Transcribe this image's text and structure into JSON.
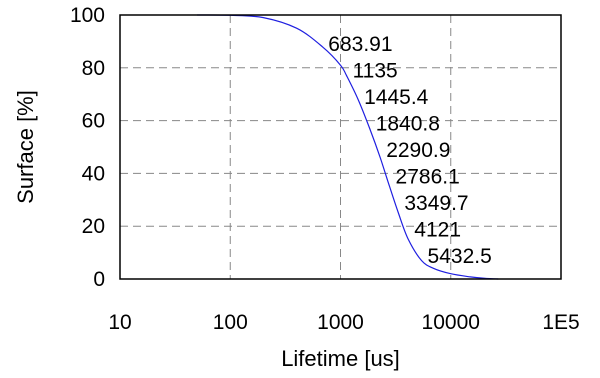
{
  "chart_data": {
    "type": "line",
    "title": "",
    "xlabel": "Lifetime [us]",
    "ylabel": "Surface [%]",
    "xscale": "log",
    "xlim": [
      10,
      100000
    ],
    "ylim": [
      0,
      100
    ],
    "x_ticks": [
      "10",
      "100",
      "1000",
      "10000",
      "1E5"
    ],
    "x_tick_values": [
      10,
      100,
      1000,
      10000,
      100000
    ],
    "y_ticks": [
      "0",
      "20",
      "40",
      "60",
      "80",
      "100"
    ],
    "y_tick_values": [
      0,
      20,
      40,
      60,
      80,
      100
    ],
    "grid": true,
    "grid_style": "dashed",
    "series": [
      {
        "color": "#1f1fe0",
        "x": [
          50,
          100,
          200,
          400,
          683.91,
          1000,
          1135,
          1445.4,
          1840.8,
          2290.9,
          2786.1,
          3349.7,
          4121,
          5432.5,
          7000,
          10000,
          15000,
          20000,
          27000
        ],
        "y": [
          100,
          99.9,
          99,
          95,
          88,
          81,
          77,
          68,
          57,
          46,
          35,
          25,
          15,
          7,
          4,
          2,
          0.8,
          0.3,
          0
        ]
      }
    ],
    "annotations": [
      "683.91",
      "1135",
      "1445.4",
      "1840.8",
      "2290.9",
      "2786.1",
      "3349.7",
      "4121",
      "5432.5"
    ]
  }
}
